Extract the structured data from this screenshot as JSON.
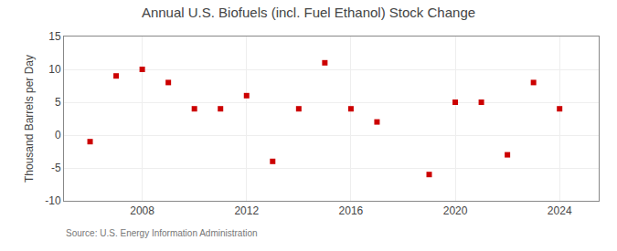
{
  "chart_data": {
    "type": "scatter",
    "title": "Annual U.S. Biofuels (incl. Fuel Ethanol) Stock Change",
    "ylabel": "Thousand Barrels per Day",
    "annotations": [
      "Source: U.S. Energy Information Administration"
    ],
    "x": [
      2006,
      2007,
      2008,
      2009,
      2010,
      2011,
      2012,
      2013,
      2014,
      2015,
      2016,
      2017,
      2019,
      2020,
      2021,
      2022,
      2023,
      2024
    ],
    "values": [
      -1,
      9,
      10,
      8,
      4,
      4,
      6,
      -4,
      4,
      11,
      4,
      2,
      -6,
      5,
      5,
      -3,
      8,
      4
    ],
    "color": "#cc0000",
    "marker": "square",
    "xlim": [
      2005.0,
      2025.5
    ],
    "xticks": [
      2008,
      2012,
      2016,
      2020,
      2024
    ],
    "ylim": [
      -10,
      15
    ],
    "yticks": [
      -10,
      -5,
      0,
      5,
      10,
      15
    ],
    "grid": true
  }
}
